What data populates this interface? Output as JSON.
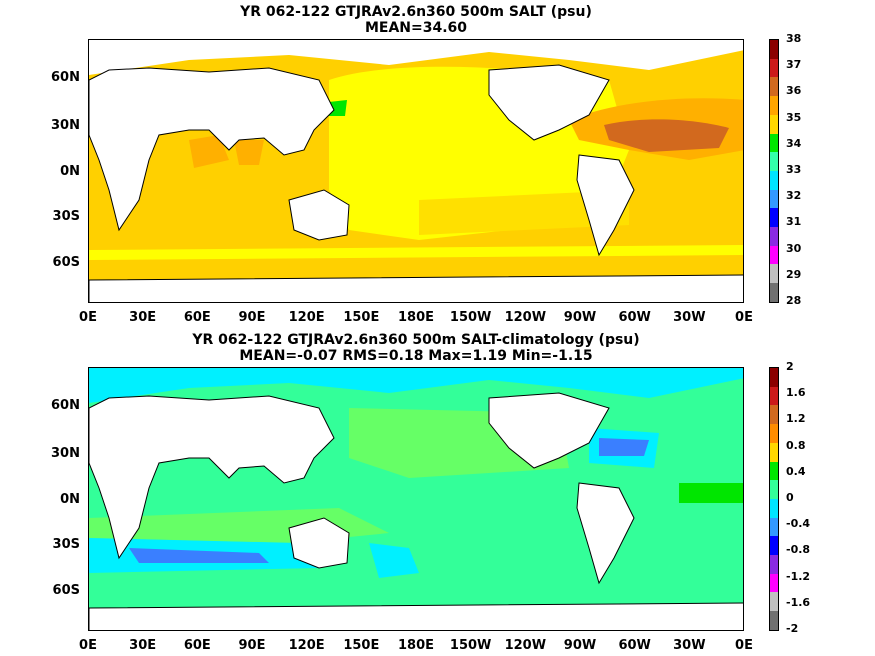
{
  "panels": [
    {
      "title1": "YR 062-122 GTJRAv2.6n360 500m SALT (psu)",
      "title2": "MEAN=34.60",
      "colorbar": {
        "labels": [
          "38",
          "37",
          "36",
          "35",
          "34",
          "33",
          "32",
          "31",
          "30",
          "29",
          "28"
        ],
        "colors": [
          "#8b0000",
          "#cc1a1a",
          "#d2691e",
          "#ffa500",
          "#ffd700",
          "#00e600",
          "#33ffaa",
          "#00e5ff",
          "#3399ff",
          "#0000ff",
          "#8a2be2",
          "#ff00ff",
          "#c0c0c0",
          "#707070"
        ]
      },
      "fill_colors": {
        "yellow": "#ffff00",
        "gold": "#ffd000",
        "orange": "#ffb000",
        "brown": "#d2691e",
        "darkred": "#8b0000",
        "green": "#00e600"
      }
    },
    {
      "title1": "YR 062-122 GTJRAv2.6n360 500m SALT-climatology (psu)",
      "title2": "MEAN=-0.07   RMS=0.18   Max=1.19   Min=-1.15",
      "colorbar": {
        "labels": [
          "2",
          "1.6",
          "1.2",
          "0.8",
          "0.4",
          "0",
          "-0.4",
          "-0.8",
          "-1.2",
          "-1.6",
          "-2"
        ],
        "colors": [
          "#8b0000",
          "#cc1a1a",
          "#d2691e",
          "#ff8c00",
          "#ffd700",
          "#00e600",
          "#33ff99",
          "#00e5ff",
          "#3399ff",
          "#0000ff",
          "#8a2be2",
          "#ff00ff",
          "#c0c0c0",
          "#707070"
        ]
      },
      "fill_colors": {
        "base": "#33ff99",
        "light": "#66ff66",
        "cyan": "#00f0ff",
        "blue": "#3a7fff",
        "green": "#00e600"
      }
    }
  ],
  "lat_labels": [
    "60N",
    "30N",
    "0N",
    "30S",
    "60S"
  ],
  "lon_labels": [
    "0E",
    "30E",
    "60E",
    "90E",
    "120E",
    "150E",
    "180E",
    "150W",
    "120W",
    "90W",
    "60W",
    "30W",
    "0E"
  ]
}
